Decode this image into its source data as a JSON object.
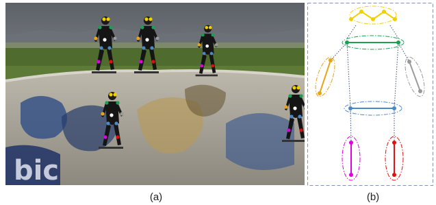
{
  "panels": {
    "a": {
      "caption": "(a)"
    },
    "b": {
      "caption": "(b)"
    }
  }
}
